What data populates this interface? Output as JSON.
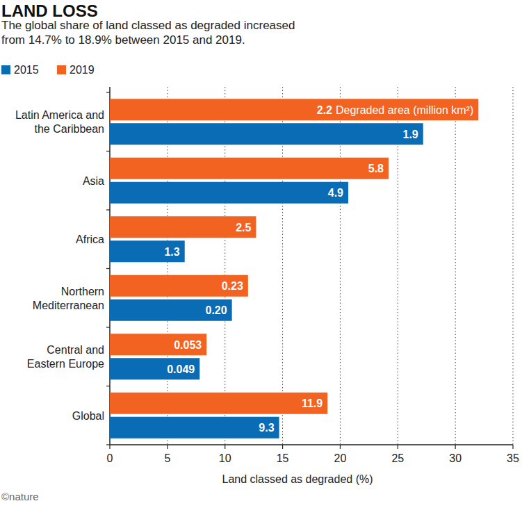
{
  "chart_data": {
    "type": "bar",
    "orientation": "horizontal",
    "title": "LAND LOSS",
    "subtitle": "The global share of land classed as degraded increased from 14.7% to 18.9% between 2015 and 2019.",
    "categories": [
      "Latin America and the Caribbean",
      "Asia",
      "Africa",
      "Northern Mediterranean",
      "Central and Eastern Europe",
      "Global"
    ],
    "series": [
      {
        "name": "2015",
        "color": "#0a6cb4",
        "values": [
          27.2,
          20.7,
          6.5,
          10.6,
          7.8,
          14.7
        ],
        "area_labels": [
          "1.9",
          "4.9",
          "1.3",
          "0.20",
          "0.049",
          "9.3"
        ]
      },
      {
        "name": "2019",
        "color": "#f26322",
        "values": [
          32.0,
          24.2,
          12.7,
          12.0,
          8.4,
          18.9
        ],
        "area_labels": [
          "2.2",
          "5.8",
          "2.5",
          "0.23",
          "0.053",
          "11.9"
        ]
      }
    ],
    "annotation": "Degraded area (million km²)",
    "xlabel": "Land classed as degraded (%)",
    "xlim": [
      0,
      35
    ],
    "xticks": [
      0,
      5,
      10,
      15,
      20,
      25,
      30,
      35
    ],
    "grid": true,
    "legend": "top-left",
    "credit": "©nature"
  }
}
